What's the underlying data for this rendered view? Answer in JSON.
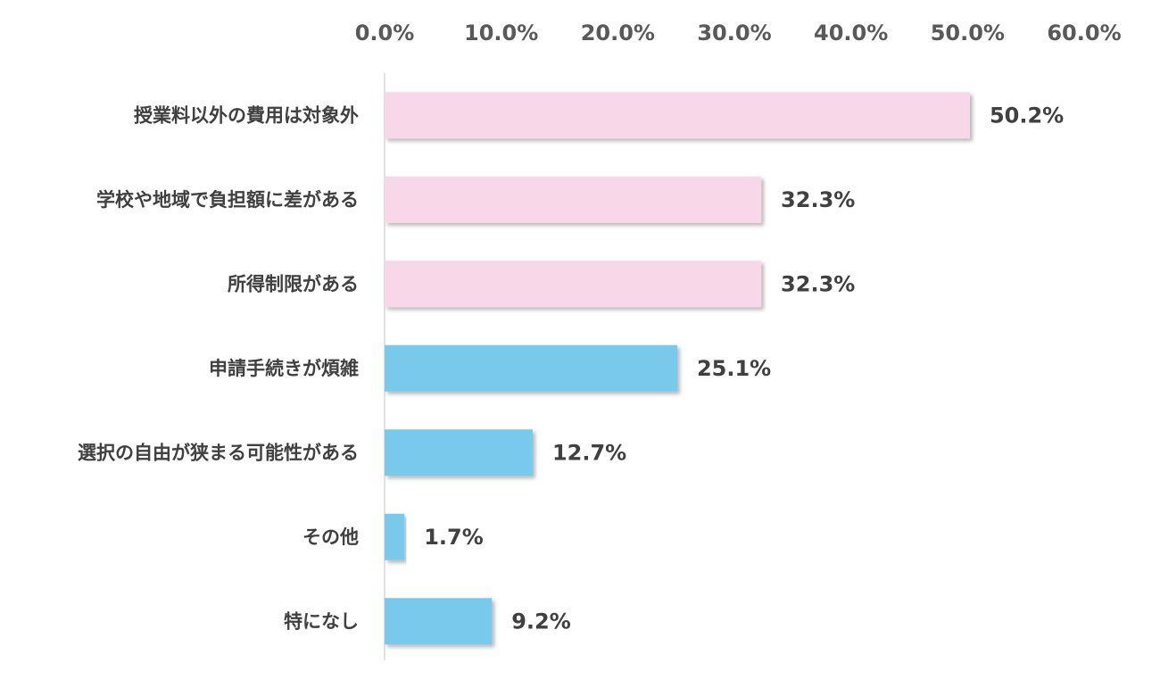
{
  "chart_data": {
    "type": "bar",
    "orientation": "horizontal",
    "categories": [
      "授業料以外の費用は対象外",
      "学校や地域で負担額に差がある",
      "所得制限がある",
      "申請手続きが煩雑",
      "選択の自由が狭まる可能性がある",
      "その他",
      "特になし"
    ],
    "values": [
      50.2,
      32.3,
      32.3,
      25.1,
      12.7,
      1.7,
      9.2
    ],
    "value_labels": [
      "50.2%",
      "32.3%",
      "32.3%",
      "25.1%",
      "12.7%",
      "1.7%",
      "9.2%"
    ],
    "bar_colors": [
      "#f8d7e8",
      "#f8d7e8",
      "#f8d7e8",
      "#78c9ec",
      "#78c9ec",
      "#78c9ec",
      "#78c9ec"
    ],
    "x_ticks": [
      0,
      10,
      20,
      30,
      40,
      50,
      60
    ],
    "x_tick_labels": [
      "0.0%",
      "10.0%",
      "20.0%",
      "30.0%",
      "40.0%",
      "50.0%",
      "60.0%"
    ],
    "xlim": [
      0,
      60
    ],
    "x_axis_position": "top",
    "grid": false,
    "legend": "none",
    "title": "",
    "xlabel": "",
    "ylabel": ""
  }
}
